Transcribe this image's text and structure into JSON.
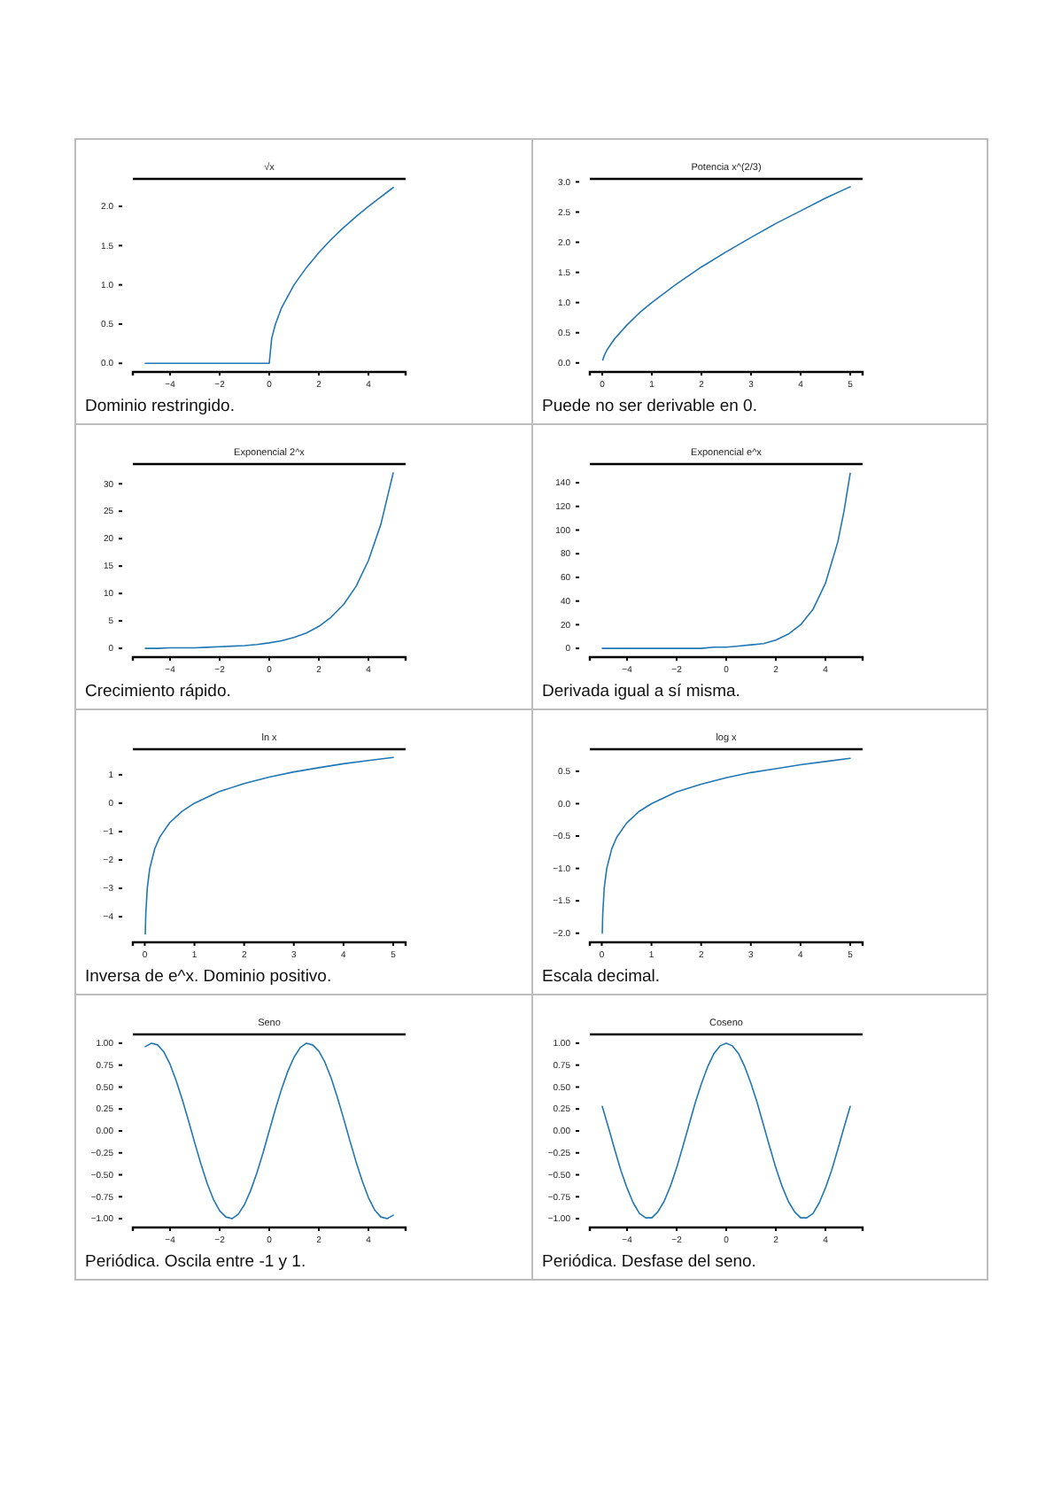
{
  "chart_data": [
    {
      "type": "line",
      "title": "√x",
      "annotations": [
        "Dominio restringido."
      ],
      "x": [
        -5,
        -4,
        -3,
        -2,
        -1,
        0,
        0.1,
        0.25,
        0.5,
        1,
        1.5,
        2,
        2.5,
        3,
        3.5,
        4,
        4.5,
        5
      ],
      "xlim": [
        -5.5,
        5.5
      ],
      "ylim": [
        -0.11,
        2.35
      ],
      "xticks": [
        -4,
        -2,
        0,
        2,
        4
      ],
      "yticks": [
        {
          "value": 0,
          "label": "0.0"
        },
        0.5,
        {
          "value": 1,
          "label": "1.0"
        },
        1.5,
        {
          "value": 2,
          "label": "2.0"
        }
      ],
      "series": [
        {
          "color": "#1f77b4",
          "values": [
            0,
            0,
            0,
            0,
            0,
            0,
            0.32,
            0.5,
            0.71,
            1,
            1.22,
            1.41,
            1.58,
            1.73,
            1.87,
            2,
            2.12,
            2.24
          ]
        }
      ]
    },
    {
      "type": "line",
      "title": "Potencia x^(2/3)",
      "annotations": [
        "Puede no ser derivable en 0."
      ],
      "x": [
        0.01,
        0.05,
        0.1,
        0.25,
        0.5,
        0.75,
        1,
        1.5,
        2,
        2.5,
        3,
        3.5,
        4,
        4.5,
        5
      ],
      "xlim": [
        -0.25,
        5.25
      ],
      "ylim": [
        -0.15,
        3.05
      ],
      "xticks": [
        0,
        1,
        2,
        3,
        4,
        5
      ],
      "yticks": [
        {
          "value": 0,
          "label": "0.0"
        },
        0.5,
        {
          "value": 1,
          "label": "1.0"
        },
        1.5,
        {
          "value": 2,
          "label": "2.0"
        },
        2.5,
        {
          "value": 3,
          "label": "3.0"
        }
      ],
      "series": [
        {
          "color": "#1f77b4",
          "values": [
            0.05,
            0.14,
            0.22,
            0.4,
            0.63,
            0.83,
            1,
            1.31,
            1.59,
            1.84,
            2.08,
            2.31,
            2.52,
            2.73,
            2.92
          ]
        }
      ]
    },
    {
      "type": "line",
      "title": "Exponencial 2^x",
      "annotations": [
        "Crecimiento rápido."
      ],
      "x": [
        -5,
        -4.5,
        -4,
        -3.5,
        -3,
        -2.5,
        -2,
        -1.5,
        -1,
        -0.5,
        0,
        0.5,
        1,
        1.5,
        2,
        2.5,
        3,
        3.5,
        4,
        4.5,
        5
      ],
      "xlim": [
        -5.5,
        5.5
      ],
      "ylim": [
        -1.6,
        33.6
      ],
      "xticks": [
        -4,
        -2,
        0,
        2,
        4
      ],
      "yticks": [
        0,
        5,
        10,
        15,
        20,
        25,
        30
      ],
      "series": [
        {
          "color": "#1f77b4",
          "values": [
            0,
            0,
            0.1,
            0.1,
            0.1,
            0.2,
            0.3,
            0.4,
            0.5,
            0.7,
            1,
            1.4,
            2,
            2.8,
            4,
            5.7,
            8,
            11.3,
            16,
            22.6,
            32
          ]
        }
      ]
    },
    {
      "type": "line",
      "title": "Exponencial e^x",
      "annotations": [
        "Derivada igual a sí misma."
      ],
      "x": [
        -5,
        -4.5,
        -4,
        -3.5,
        -3,
        -2.5,
        -2,
        -1.5,
        -1,
        -0.5,
        0,
        0.5,
        1,
        1.5,
        2,
        2.5,
        3,
        3.5,
        4,
        4.5,
        4.75,
        5
      ],
      "xlim": [
        -5.5,
        5.5
      ],
      "ylim": [
        -7.4,
        155.8
      ],
      "xticks": [
        -4,
        -2,
        0,
        2,
        4
      ],
      "yticks": [
        0,
        20,
        40,
        60,
        80,
        100,
        120,
        140
      ],
      "series": [
        {
          "color": "#1f77b4",
          "values": [
            0,
            0,
            0,
            0,
            0,
            0,
            0,
            0,
            0,
            1,
            1,
            2,
            3,
            4,
            7,
            12,
            20,
            33,
            55,
            90,
            116,
            148
          ]
        }
      ]
    },
    {
      "type": "line",
      "title": "ln x",
      "annotations": [
        "Inversa de e^x. Dominio positivo."
      ],
      "x": [
        0.01,
        0.02,
        0.05,
        0.1,
        0.2,
        0.3,
        0.5,
        0.75,
        1,
        1.5,
        2,
        2.5,
        3,
        3.5,
        4,
        4.5,
        5
      ],
      "xlim": [
        -0.24,
        5.25
      ],
      "ylim": [
        -4.9,
        1.9
      ],
      "xticks": [
        0,
        1,
        2,
        3,
        4,
        5
      ],
      "yticks": [
        {
          "value": -4,
          "label": "−4"
        },
        {
          "value": -3,
          "label": "−3"
        },
        {
          "value": -2,
          "label": "−2"
        },
        {
          "value": -1,
          "label": "−1"
        },
        0,
        1
      ],
      "series": [
        {
          "color": "#1f77b4",
          "values": [
            -4.61,
            -3.91,
            -3,
            -2.3,
            -1.61,
            -1.2,
            -0.69,
            -0.29,
            0,
            0.41,
            0.69,
            0.92,
            1.1,
            1.25,
            1.39,
            1.5,
            1.61
          ]
        }
      ]
    },
    {
      "type": "line",
      "title": "log x",
      "annotations": [
        "Escala decimal."
      ],
      "x": [
        0.01,
        0.02,
        0.05,
        0.1,
        0.2,
        0.3,
        0.5,
        0.75,
        1,
        1.5,
        2,
        2.5,
        3,
        3.5,
        4,
        4.5,
        5
      ],
      "xlim": [
        -0.24,
        5.25
      ],
      "ylim": [
        -2.14,
        0.84
      ],
      "xticks": [
        0,
        1,
        2,
        3,
        4,
        5
      ],
      "yticks": [
        {
          "value": -2,
          "label": "−2.0"
        },
        {
          "value": -1.5,
          "label": "−1.5"
        },
        {
          "value": -1,
          "label": "−1.0"
        },
        {
          "value": -0.5,
          "label": "−0.5"
        },
        {
          "value": 0,
          "label": "0.0"
        },
        0.5
      ],
      "series": [
        {
          "color": "#1f77b4",
          "values": [
            -2,
            -1.7,
            -1.3,
            -1,
            -0.7,
            -0.52,
            -0.3,
            -0.12,
            0,
            0.18,
            0.3,
            0.4,
            0.48,
            0.54,
            0.6,
            0.65,
            0.7
          ]
        }
      ]
    },
    {
      "type": "line",
      "title": "Seno",
      "annotations": [
        "Periódica. Oscila entre -1 y 1."
      ],
      "x": [
        -5,
        -4.75,
        -4.5,
        -4.25,
        -4,
        -3.75,
        -3.5,
        -3.25,
        -3,
        -2.75,
        -2.5,
        -2.25,
        -2,
        -1.75,
        -1.5,
        -1.25,
        -1,
        -0.75,
        -0.5,
        -0.25,
        0,
        0.25,
        0.5,
        0.75,
        1,
        1.25,
        1.5,
        1.75,
        2,
        2.25,
        2.5,
        2.75,
        3,
        3.25,
        3.5,
        3.75,
        4,
        4.25,
        4.5,
        4.75,
        5
      ],
      "xlim": [
        -5.5,
        5.5
      ],
      "ylim": [
        -1.1,
        1.1
      ],
      "xticks": [
        -4,
        -2,
        0,
        2,
        4
      ],
      "yticks": [
        {
          "value": -1,
          "label": "−1.00"
        },
        {
          "value": -0.75,
          "label": "−0.75"
        },
        {
          "value": -0.5,
          "label": "−0.50"
        },
        {
          "value": -0.25,
          "label": "−0.25"
        },
        {
          "value": 0,
          "label": "0.00"
        },
        0.25,
        {
          "value": 0.5,
          "label": "0.50"
        },
        0.75,
        {
          "value": 1,
          "label": "1.00"
        }
      ],
      "series": [
        {
          "color": "#1f77b4",
          "values": [
            0.96,
            1,
            0.98,
            0.9,
            0.76,
            0.57,
            0.35,
            0.11,
            -0.14,
            -0.38,
            -0.6,
            -0.78,
            -0.91,
            -0.98,
            -1,
            -0.95,
            -0.84,
            -0.68,
            -0.48,
            -0.25,
            0,
            0.25,
            0.48,
            0.68,
            0.84,
            0.95,
            1,
            0.98,
            0.91,
            0.78,
            0.6,
            0.38,
            0.14,
            -0.11,
            -0.35,
            -0.57,
            -0.76,
            -0.9,
            -0.98,
            -1,
            -0.96
          ]
        }
      ]
    },
    {
      "type": "line",
      "title": "Coseno",
      "annotations": [
        "Periódica. Desfase del seno."
      ],
      "x": [
        -5,
        -4.75,
        -4.5,
        -4.25,
        -4,
        -3.75,
        -3.5,
        -3.25,
        -3,
        -2.75,
        -2.5,
        -2.25,
        -2,
        -1.75,
        -1.5,
        -1.25,
        -1,
        -0.75,
        -0.5,
        -0.25,
        0,
        0.25,
        0.5,
        0.75,
        1,
        1.25,
        1.5,
        1.75,
        2,
        2.25,
        2.5,
        2.75,
        3,
        3.25,
        3.5,
        3.75,
        4,
        4.25,
        4.5,
        4.75,
        5
      ],
      "xlim": [
        -5.5,
        5.5
      ],
      "ylim": [
        -1.1,
        1.1
      ],
      "xticks": [
        -4,
        -2,
        0,
        2,
        4
      ],
      "yticks": [
        {
          "value": -1,
          "label": "−1.00"
        },
        {
          "value": -0.75,
          "label": "−0.75"
        },
        {
          "value": -0.5,
          "label": "−0.50"
        },
        {
          "value": -0.25,
          "label": "−0.25"
        },
        {
          "value": 0,
          "label": "0.00"
        },
        0.25,
        {
          "value": 0.5,
          "label": "0.50"
        },
        0.75,
        {
          "value": 1,
          "label": "1.00"
        }
      ],
      "series": [
        {
          "color": "#1f77b4",
          "values": [
            0.28,
            0.04,
            -0.21,
            -0.45,
            -0.65,
            -0.82,
            -0.94,
            -0.99,
            -0.99,
            -0.92,
            -0.8,
            -0.63,
            -0.42,
            -0.18,
            0.07,
            0.32,
            0.54,
            0.73,
            0.88,
            0.97,
            1,
            0.97,
            0.88,
            0.73,
            0.54,
            0.32,
            0.07,
            -0.18,
            -0.42,
            -0.63,
            -0.8,
            -0.92,
            -0.99,
            -0.99,
            -0.94,
            -0.82,
            -0.65,
            -0.45,
            -0.21,
            0.04,
            0.28
          ]
        }
      ]
    }
  ]
}
